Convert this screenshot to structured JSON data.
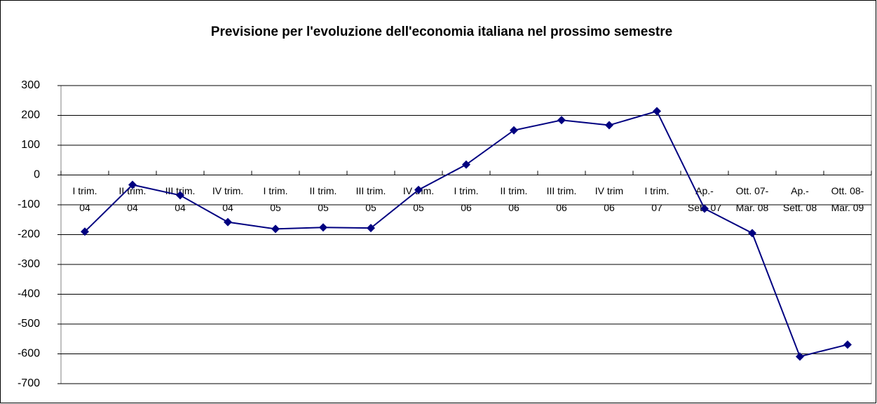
{
  "chart_data": {
    "type": "line",
    "title": "Previsione per l'evoluzione dell'economia italiana nel prossimo semestre",
    "categories": [
      [
        "I trim.",
        "04"
      ],
      [
        "II trim.",
        "04"
      ],
      [
        "III trim.",
        "04"
      ],
      [
        "IV trim.",
        "04"
      ],
      [
        "I trim.",
        "05"
      ],
      [
        "II trim.",
        "05"
      ],
      [
        "III trim.",
        "05"
      ],
      [
        "IV trim.",
        "05"
      ],
      [
        "I trim.",
        "06"
      ],
      [
        "II trim.",
        "06"
      ],
      [
        "III trim.",
        "06"
      ],
      [
        "IV trim",
        "06"
      ],
      [
        "I trim.",
        "07"
      ],
      [
        "Ap.-",
        "Sett. 07"
      ],
      [
        "Ott. 07-",
        "Mar. 08"
      ],
      [
        "Ap.-",
        "Sett. 08"
      ],
      [
        "Ott. 08-",
        "Mar. 09"
      ]
    ],
    "values": [
      -190,
      -33,
      -68,
      -158,
      -181,
      -176,
      -178,
      -50,
      35,
      150,
      184,
      167,
      214,
      -113,
      -195,
      -609,
      -569
    ],
    "color": "#000080",
    "ylim": [
      -700,
      300
    ],
    "yticks": [
      -700,
      -600,
      -500,
      -400,
      -300,
      -200,
      -100,
      0,
      100,
      200,
      300
    ],
    "grid": true
  }
}
